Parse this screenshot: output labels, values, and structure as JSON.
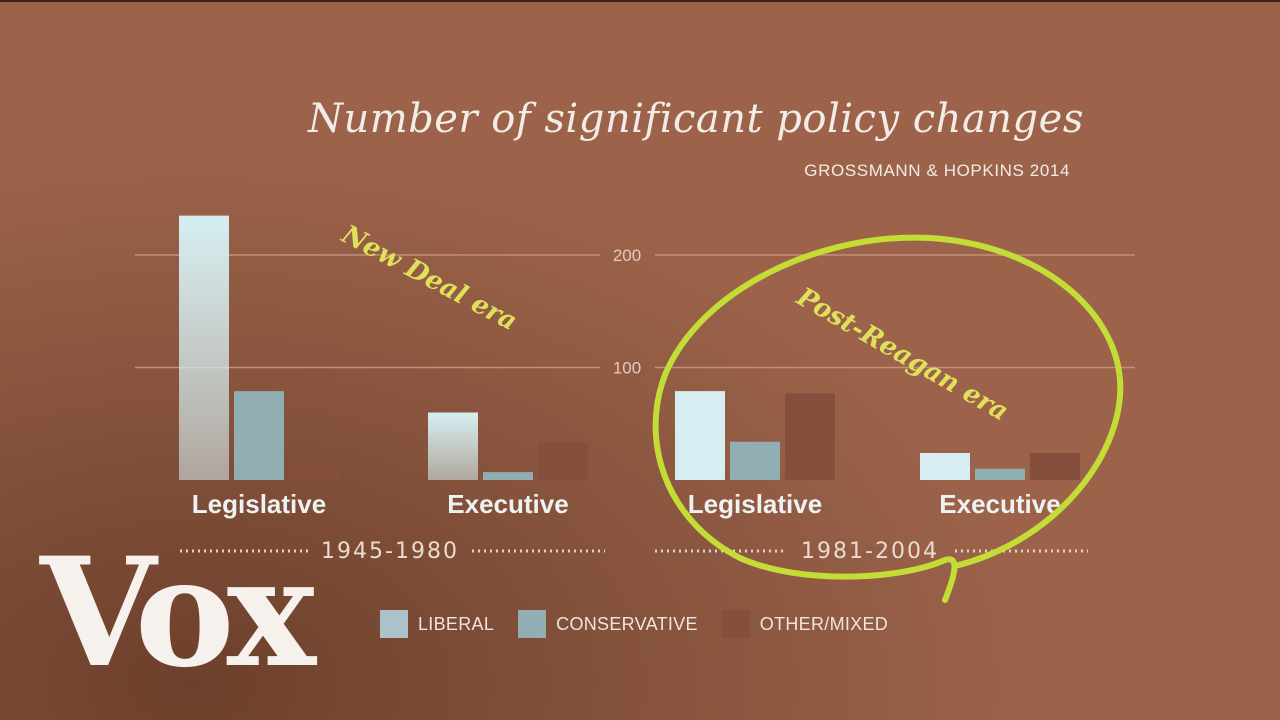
{
  "logo": "Vox",
  "colors": {
    "liberal": "#d6eef1",
    "conservative": "#91aeb3",
    "other": "#844f3c",
    "annotation": "#c4dd36"
  },
  "chart_data": {
    "type": "bar",
    "title": "Number of significant policy changes",
    "subtitle": "GROSSMANN & HOPKINS 2014",
    "y_ticks": [
      100,
      200
    ],
    "ylim": [
      0,
      240
    ],
    "grid": true,
    "legend_position": "bottom",
    "series_keys": [
      "liberal",
      "conservative",
      "other"
    ],
    "legend": [
      {
        "key": "liberal",
        "label": "LIBERAL"
      },
      {
        "key": "conservative",
        "label": "CONSERVATIVE"
      },
      {
        "key": "other",
        "label": "OTHER/MIXED"
      }
    ],
    "eras": [
      {
        "label": "1945-1980",
        "annotation": "New Deal era",
        "groups": [
          {
            "label": "Legislative",
            "values": {
              "liberal": 235,
              "other": 9,
              "conservative": 79
            }
          },
          {
            "label": "Executive",
            "values": {
              "liberal": 60,
              "other": 33,
              "conservative": 7
            }
          }
        ]
      },
      {
        "label": "1981-2004",
        "annotation": "Post-Reagan era",
        "groups": [
          {
            "label": "Legislative",
            "values": {
              "liberal": 79,
              "other": 77,
              "conservative": 34
            }
          },
          {
            "label": "Executive",
            "values": {
              "liberal": 24,
              "other": 24,
              "conservative": 10
            }
          }
        ]
      }
    ]
  }
}
